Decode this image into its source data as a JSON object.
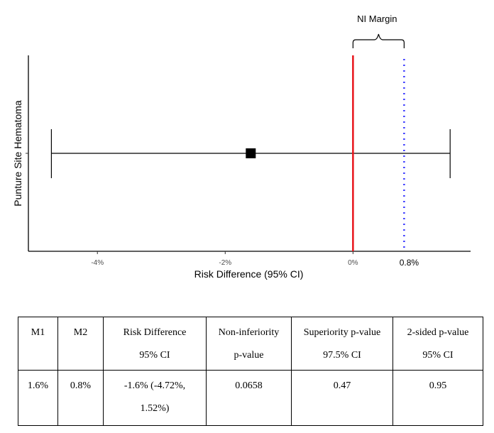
{
  "chart_data": {
    "type": "forest",
    "xlabel": "Risk Difference (95% CI)",
    "ylabel": "Punture Site Hematoma",
    "xlim": [
      -5.08,
      1.84
    ],
    "x_ticks": [
      {
        "value": -4,
        "label": "-4%"
      },
      {
        "value": -2,
        "label": "-2%"
      },
      {
        "value": 0,
        "label": "0%"
      }
    ],
    "extra_tick": {
      "value": 0.8,
      "label": "0.8%"
    },
    "estimate": {
      "value": -1.6,
      "ci_low": -4.72,
      "ci_high": 1.52
    },
    "reference_line": {
      "value": 0,
      "color": "#e8141b"
    },
    "margin_line": {
      "value": 0.8,
      "color": "#3a3aff",
      "style": "dotted"
    },
    "annotation": "NI Margin",
    "grid": false
  },
  "table": {
    "headers": [
      [
        "M1"
      ],
      [
        "M2"
      ],
      [
        "Risk Difference",
        "95% CI"
      ],
      [
        "Non-inferiority",
        "p-value"
      ],
      [
        "Superiority p-value",
        "97.5% CI"
      ],
      [
        "2-sided p-value",
        "95% CI"
      ]
    ],
    "rows": [
      [
        [
          "1.6%"
        ],
        [
          "0.8%"
        ],
        [
          "-1.6% (-4.72%,",
          "1.52%)"
        ],
        [
          "0.0658"
        ],
        [
          "0.47"
        ],
        [
          "0.95"
        ]
      ]
    ]
  }
}
